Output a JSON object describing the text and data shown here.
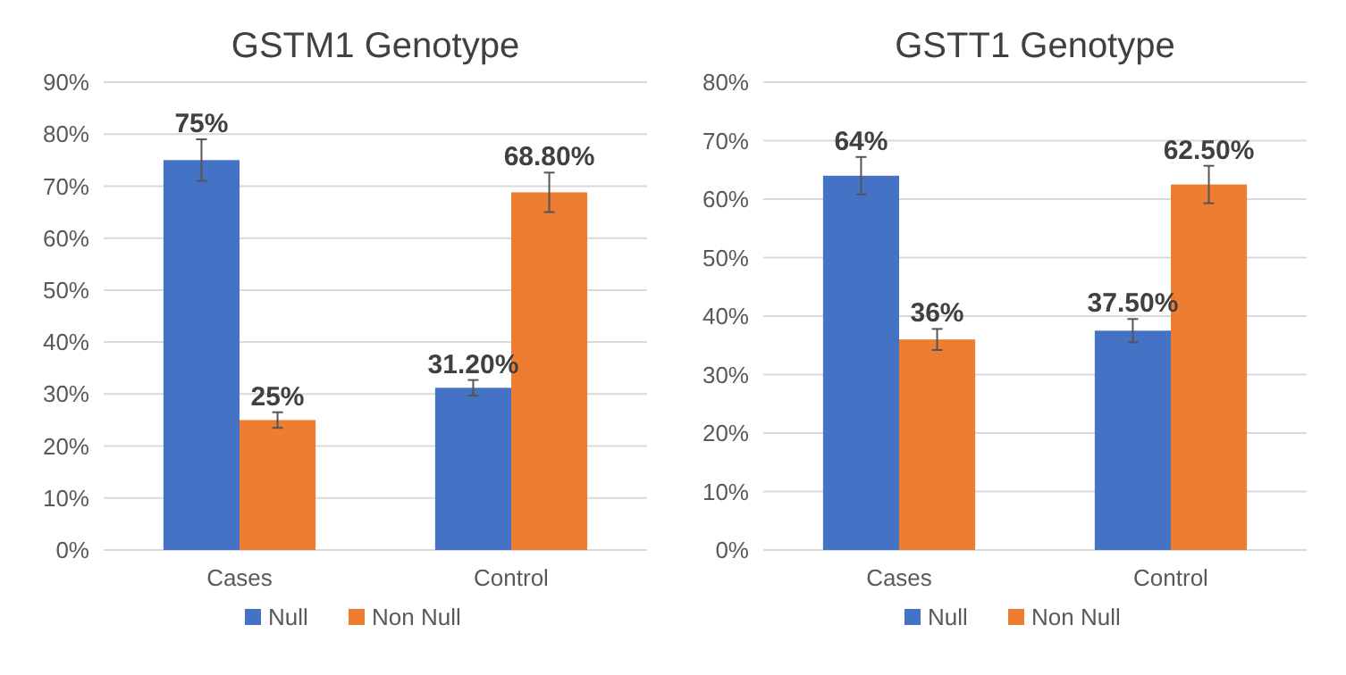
{
  "chart_data": [
    {
      "type": "bar",
      "title": "GSTM1 Genotype",
      "categories": [
        "Cases",
        "Control"
      ],
      "series": [
        {
          "name": "Null",
          "color": "#4472c4",
          "values": [
            75,
            31.2
          ],
          "errors": [
            4,
            1.5
          ],
          "value_labels": [
            "75%",
            "31.20%"
          ]
        },
        {
          "name": "Non Null",
          "color": "#ed7d31",
          "values": [
            25,
            68.8
          ],
          "errors": [
            1.5,
            3.8
          ],
          "value_labels": [
            "25%",
            "68.80%"
          ]
        }
      ],
      "ylim": [
        0,
        90
      ],
      "yticks": [
        {
          "value": 0,
          "label": "0%"
        },
        {
          "value": 10,
          "label": "10%"
        },
        {
          "value": 20,
          "label": "20%"
        },
        {
          "value": 30,
          "label": "30%"
        },
        {
          "value": 40,
          "label": "40%"
        },
        {
          "value": 50,
          "label": "50%"
        },
        {
          "value": 60,
          "label": "60%"
        },
        {
          "value": 70,
          "label": "70%"
        },
        {
          "value": 80,
          "label": "80%"
        },
        {
          "value": 90,
          "label": "90%"
        }
      ],
      "grid": "y",
      "legend": "bottom"
    },
    {
      "type": "bar",
      "title": "GSTT1 Genotype",
      "categories": [
        "Cases",
        "Control"
      ],
      "series": [
        {
          "name": "Null",
          "color": "#4472c4",
          "values": [
            64,
            37.5
          ],
          "errors": [
            3.2,
            2
          ],
          "value_labels": [
            "64%",
            "37.50%"
          ]
        },
        {
          "name": "Non Null",
          "color": "#ed7d31",
          "values": [
            36,
            62.5
          ],
          "errors": [
            1.8,
            3.2
          ],
          "value_labels": [
            "36%",
            "62.50%"
          ]
        }
      ],
      "ylim": [
        0,
        80
      ],
      "yticks": [
        {
          "value": 0,
          "label": "0%"
        },
        {
          "value": 10,
          "label": "10%"
        },
        {
          "value": 20,
          "label": "20%"
        },
        {
          "value": 30,
          "label": "30%"
        },
        {
          "value": 40,
          "label": "40%"
        },
        {
          "value": 50,
          "label": "50%"
        },
        {
          "value": 60,
          "label": "60%"
        },
        {
          "value": 70,
          "label": "70%"
        },
        {
          "value": 80,
          "label": "80%"
        }
      ],
      "grid": "y",
      "legend": "bottom"
    }
  ]
}
